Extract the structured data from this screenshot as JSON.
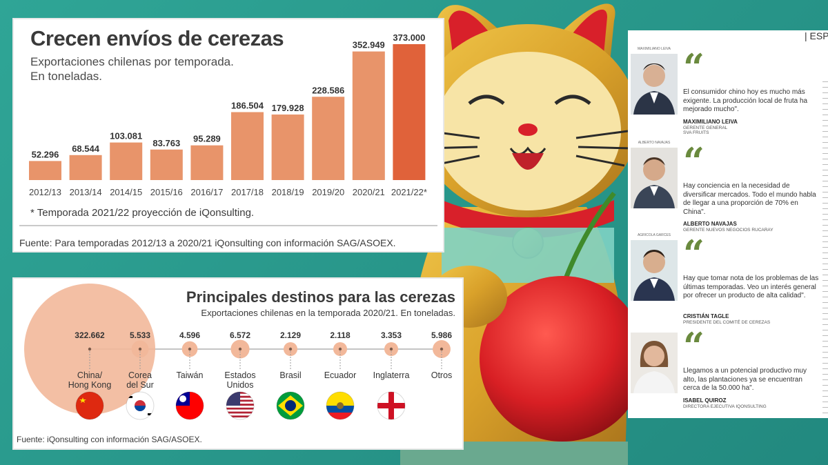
{
  "bar_panel": {
    "title": "Crecen envíos de cerezas",
    "subtitle": "Exportaciones chilenas por temporada.",
    "unit": "En toneladas.",
    "note": "* Temporada 2021/22 proyección de iQonsulting.",
    "source": "Fuente: Para temporadas 2012/13 a 2020/21 iQonsulting con información SAG/ASOEX."
  },
  "destinations_panel": {
    "title": "Principales destinos para las cerezas",
    "subtitle": "Exportaciones chilenas en la temporada 2020/21. En toneladas.",
    "source": "Fuente: iQonsulting con información SAG/ASOEX."
  },
  "chart_data": [
    {
      "type": "bar",
      "title": "Crecen envíos de cerezas",
      "subtitle": "Exportaciones chilenas por temporada. En toneladas.",
      "categories": [
        "2012/13",
        "2013/14",
        "2014/15",
        "2015/16",
        "2016/17",
        "2017/18",
        "2018/19",
        "2019/20",
        "2020/21",
        "2021/22*"
      ],
      "values": [
        52296,
        68544,
        103081,
        83763,
        95289,
        186504,
        179928,
        228586,
        352949,
        373000
      ],
      "value_labels": [
        "52.296",
        "68.544",
        "103.081",
        "83.763",
        "95.289",
        "186.504",
        "179.928",
        "228.586",
        "352.949",
        "373.000"
      ],
      "ylim": [
        0,
        373000
      ],
      "colors": {
        "bar": "#e8946a",
        "highlight": "#e0623a"
      },
      "grid": false
    },
    {
      "type": "scatter",
      "title": "Principales destinos para las cerezas",
      "subtitle": "Exportaciones chilenas en la temporada 2020/21. En toneladas.",
      "categories": [
        "China/\nHong Kong",
        "Corea\ndel Sur",
        "Taiwán",
        "Estados\nUnidos",
        "Brasil",
        "Ecuador",
        "Inglaterra",
        "Otros"
      ],
      "values": [
        322662,
        5533,
        4596,
        6572,
        2129,
        2118,
        3353,
        5986
      ],
      "value_labels": [
        "322.662",
        "5.533",
        "4.596",
        "6.572",
        "2.129",
        "2.118",
        "3.353",
        "5.986"
      ],
      "colors": {
        "bubble": "#f2b89a"
      }
    }
  ],
  "flags": [
    "china-flag-icon",
    "south-korea-flag-icon",
    "taiwan-flag-icon",
    "usa-flag-icon",
    "brazil-flag-icon",
    "ecuador-flag-icon",
    "england-flag-icon"
  ],
  "quotes_panel": {
    "header": "| ESP",
    "quotes": [
      {
        "credit": "MAXIMILIANO LEIVA",
        "text": "El consumidor chino hoy es mucho más exigente. La producción local de fruta ha mejorado mucho\".",
        "name": "MAXIMILIANO LEIVA",
        "role": "GERENTE GENERAL",
        "company": "SVA FRUITS"
      },
      {
        "credit": "ALBERTO NAVAJAS",
        "text": "Hay conciencia en la necesidad de diversificar mercados. Todo el mundo habla de llegar a una proporción de 70% en China\".",
        "name": "ALBERTO NAVAJAS",
        "role": "GERENTE NUEVOS NEGOCIOS RUCARAY",
        "company": ""
      },
      {
        "credit": "AGRICOLA GARCES",
        "text": "Hay que tomar nota de los problemas de las últimas temporadas. Veo un interés general por ofrecer un producto de alta calidad\".",
        "name": "CRISTIÁN TAGLE",
        "role": "PRESIDENTE DEL COMITÉ DE CEREZAS",
        "company": ""
      },
      {
        "credit": "",
        "text": "Llegamos a un potencial productivo muy alto, las plantaciones ya se encuentran cerca de la 50.000 ha\".",
        "name": "ISABEL QUIROZ",
        "role": "DIRECTORA EJECUTIVA IQONSULTING",
        "company": ""
      }
    ]
  }
}
